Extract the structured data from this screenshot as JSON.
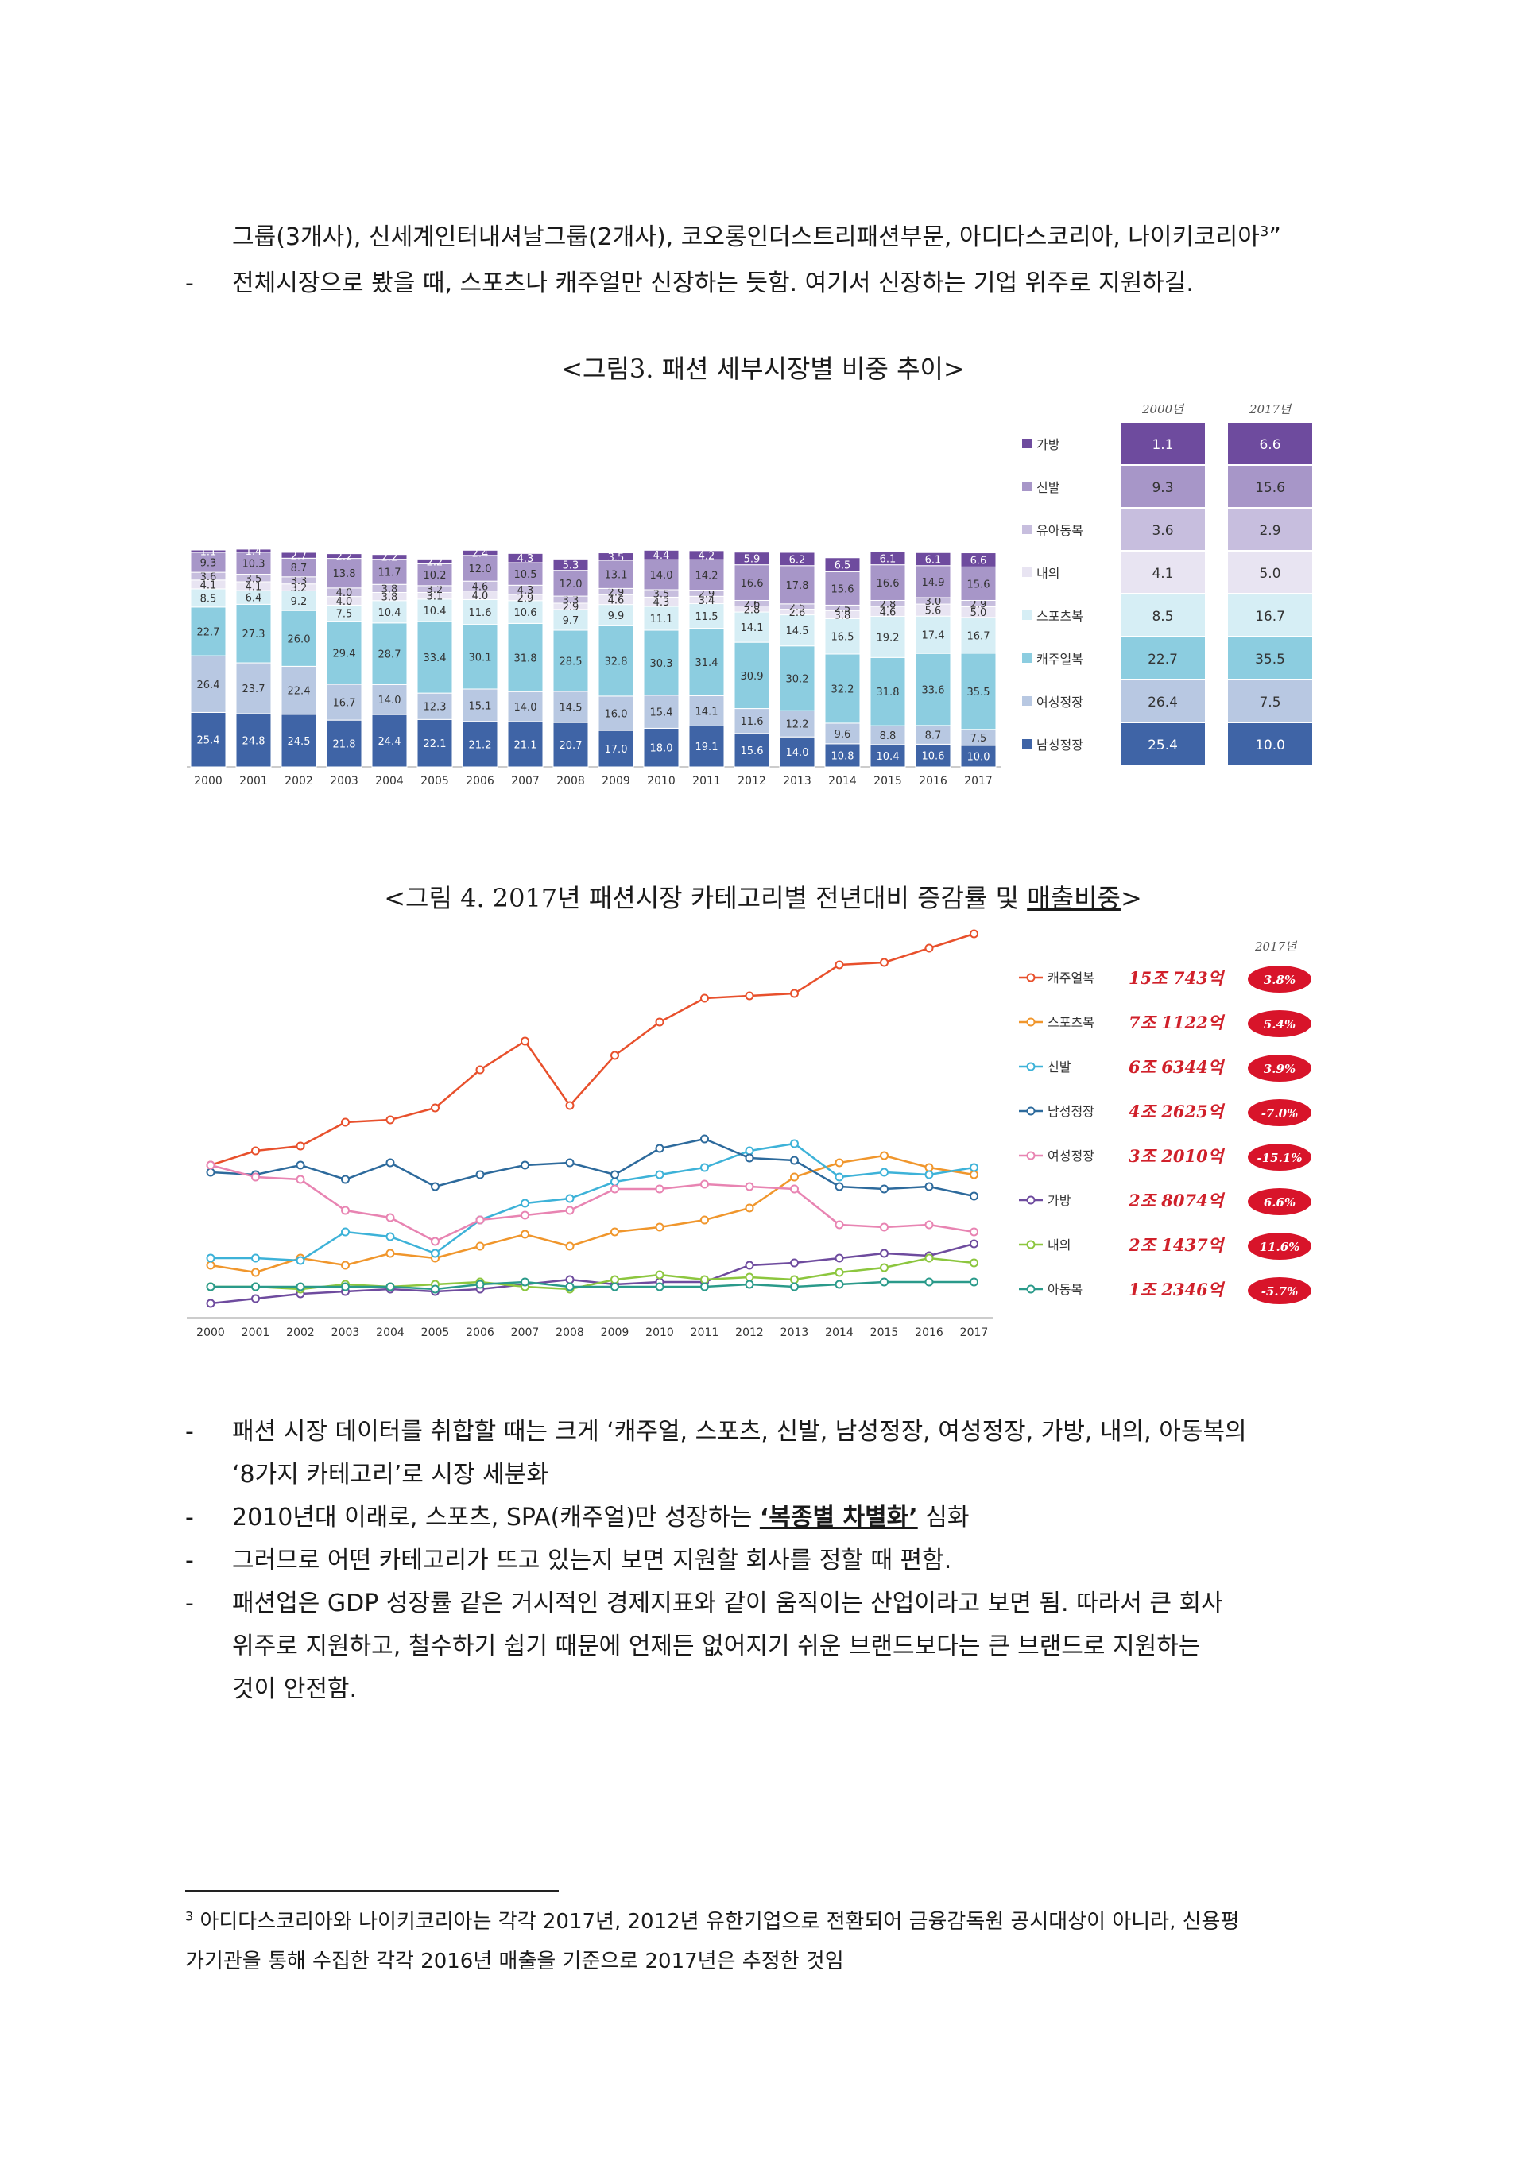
{
  "intro": {
    "line1_text": "그룹(3개사), 신세계인터내셔날그룹(2개사), 코오롱인더스트리패션부문, 아디다스코리아, 나이키코리아",
    "line1_sup": "3",
    "line1_end": "”",
    "bullet_text": "전체시장으로 봤을 때, 스포츠나 캐주얼만 신장하는 듯함. 여기서 신장하는 기업 위주로 지원하길."
  },
  "figure3": {
    "caption": "<그림3. 패션 세부시장별 비중 추이>",
    "table_col_2000": "2000년",
    "table_col_2017": "2017년"
  },
  "figure4": {
    "caption_pre": "<그림 4. 2017년 패션시장 카테고리별 전년대비 증감률 및 ",
    "caption_u": "매출비중",
    "caption_post": ">",
    "year_header": "2017년"
  },
  "bullets": [
    {
      "dash": "-",
      "line1": "패션 시장 데이터를 취합할 때는 크게 ‘캐주얼, 스포츠, 신발, 남성정장, 여성정장, 가방, 내의, 아동복의",
      "line2": "‘8가지 카테고리’로 시장 세분화"
    },
    {
      "dash": "-",
      "pre": "2010년대 이래로, 스포츠, SPA(캐주얼)만 성장하는 ",
      "bold": "‘복종별 차별화’",
      "post": " 심화"
    },
    {
      "dash": "-",
      "line1": "그러므로 어떤 카테고리가 뜨고 있는지 보면 지원할 회사를 정할 때 편함."
    },
    {
      "dash": "-",
      "line1": "패션업은 GDP 성장률 같은 거시적인 경제지표와 같이 움직이는 산업이라고 보면 됨. 따라서 큰 회사",
      "line2": "위주로 지원하고, 철수하기 쉽기 때문에 언제든 없어지기 쉬운 브랜드보다는 큰 브랜드로 지원하는",
      "line3": "것이 안전함."
    }
  ],
  "footnote": {
    "num": "3",
    "line1": "아디다스코리아와 나이키코리아는 각각 2017년, 2012년 유한기업으로 전환되어 금융감독원 공시대상이 아니라, 신용평",
    "line2": "가기관을 통해 수집한 각각 2016년 매출을 기준으로 2017년은 추정한 것임"
  },
  "chart_data": [
    {
      "type": "bar",
      "stacked": true,
      "title": "",
      "categories": [
        "2000",
        "2001",
        "2002",
        "2003",
        "2004",
        "2005",
        "2006",
        "2007",
        "2008",
        "2009",
        "2010",
        "2011",
        "2012",
        "2013",
        "2014",
        "2015",
        "2016",
        "2017"
      ],
      "series": [
        {
          "name": "남성정장",
          "color": "#3f64a6",
          "values": [
            25.4,
            24.8,
            24.5,
            21.8,
            24.4,
            22.1,
            21.2,
            21.1,
            20.7,
            17.0,
            18.0,
            19.1,
            15.6,
            14.0,
            10.8,
            10.4,
            10.6,
            10.0
          ]
        },
        {
          "name": "여성정장",
          "color": "#b8c8e2",
          "values": [
            26.4,
            23.7,
            22.4,
            16.7,
            14.0,
            12.3,
            15.1,
            14.0,
            14.5,
            16.0,
            15.4,
            14.1,
            11.6,
            12.2,
            9.6,
            8.8,
            8.7,
            7.5
          ]
        },
        {
          "name": "캐주얼복",
          "color": "#8ccde0",
          "values": [
            22.7,
            27.3,
            26.0,
            29.4,
            28.7,
            33.4,
            30.1,
            31.8,
            28.5,
            32.8,
            30.3,
            31.4,
            30.9,
            30.2,
            32.2,
            31.8,
            33.6,
            35.5
          ]
        },
        {
          "name": "스포츠복",
          "color": "#d6eef5",
          "values": [
            8.5,
            6.4,
            9.2,
            7.5,
            10.4,
            10.4,
            11.6,
            10.6,
            9.7,
            9.9,
            11.1,
            11.5,
            14.1,
            14.5,
            16.5,
            19.2,
            17.4,
            16.7
          ]
        },
        {
          "name": "내의",
          "color": "#e8e4f2",
          "values": [
            4.1,
            4.1,
            3.2,
            4.0,
            3.8,
            3.1,
            4.0,
            2.9,
            2.9,
            4.6,
            4.3,
            3.4,
            2.8,
            2.6,
            3.8,
            4.6,
            5.6,
            5.0
          ]
        },
        {
          "name": "유아동복",
          "color": "#c7bede",
          "values": [
            3.6,
            3.5,
            3.3,
            4.0,
            3.8,
            3.2,
            4.6,
            4.3,
            3.3,
            2.9,
            3.5,
            2.9,
            2.6,
            2.5,
            2.5,
            2.8,
            3.0,
            2.9
          ]
        },
        {
          "name": "신발",
          "color": "#a796c8",
          "values": [
            9.3,
            10.3,
            8.7,
            13.8,
            11.7,
            10.2,
            12.0,
            10.5,
            12.0,
            13.1,
            14.0,
            14.2,
            16.6,
            17.8,
            15.6,
            16.6,
            14.9,
            15.6
          ]
        },
        {
          "name": "가방",
          "color": "#6e4b9e",
          "values": [
            1.1,
            1.4,
            2.7,
            2.2,
            2.2,
            2.2,
            2.4,
            4.3,
            5.3,
            3.5,
            4.4,
            4.2,
            5.9,
            6.2,
            6.5,
            6.1,
            6.1,
            6.6
          ]
        }
      ],
      "summary_table": {
        "columns": [
          "2000년",
          "2017년"
        ],
        "rows": [
          {
            "name": "가방",
            "v2000": 1.1,
            "v2017": 6.6
          },
          {
            "name": "신발",
            "v2000": 9.3,
            "v2017": 15.6
          },
          {
            "name": "유아동복",
            "v2000": 3.6,
            "v2017": 2.9
          },
          {
            "name": "내의",
            "v2000": 4.1,
            "v2017": 5.0
          },
          {
            "name": "스포츠복",
            "v2000": 8.5,
            "v2017": 16.7
          },
          {
            "name": "캐주얼복",
            "v2000": 22.7,
            "v2017": 35.5
          },
          {
            "name": "여성정장",
            "v2000": 26.4,
            "v2017": 7.5
          },
          {
            "name": "남성정장",
            "v2000": 25.4,
            "v2017": 10.0
          }
        ]
      }
    },
    {
      "type": "line",
      "title": "",
      "x": [
        "2000",
        "2001",
        "2002",
        "2003",
        "2004",
        "2005",
        "2006",
        "2007",
        "2008",
        "2009",
        "2010",
        "2011",
        "2012",
        "2013",
        "2014",
        "2015",
        "2016",
        "2017"
      ],
      "ylim": [
        0,
        16
      ],
      "series": [
        {
          "name": "캐주얼복",
          "color": "#e8502c",
          "sales": "15조 743억",
          "change": "3.8%",
          "values": [
            5.9,
            6.5,
            6.7,
            7.7,
            7.8,
            8.3,
            9.9,
            11.1,
            8.4,
            10.5,
            11.9,
            12.9,
            13.0,
            13.1,
            14.3,
            14.4,
            15.0,
            15.6
          ]
        },
        {
          "name": "스포츠복",
          "color": "#f0962c",
          "sales": "7조 1122억",
          "change": "5.4%",
          "values": [
            1.7,
            1.4,
            2.0,
            1.7,
            2.2,
            2.0,
            2.5,
            3.0,
            2.5,
            3.1,
            3.3,
            3.6,
            4.1,
            5.4,
            6.0,
            6.3,
            5.8,
            5.5
          ]
        },
        {
          "name": "신발",
          "color": "#3db2d8",
          "values": [
            2.0,
            2.0,
            1.9,
            3.1,
            2.9,
            2.2,
            3.6,
            4.3,
            4.5,
            5.2,
            5.5,
            5.8,
            6.5,
            6.8,
            5.4,
            5.6,
            5.5,
            5.8
          ],
          "sales": "6조 6344억",
          "change": "3.9%"
        },
        {
          "name": "남성정장",
          "color": "#2d6a9c",
          "values": [
            5.6,
            5.5,
            5.9,
            5.3,
            6.0,
            5.0,
            5.5,
            5.9,
            6.0,
            5.5,
            6.6,
            7.0,
            6.2,
            6.1,
            5.0,
            4.9,
            5.0,
            4.6
          ],
          "sales": "4조 2625억",
          "change": "-7.0%"
        },
        {
          "name": "여성정장",
          "color": "#e884b2",
          "values": [
            5.9,
            5.4,
            5.3,
            4.0,
            3.7,
            2.7,
            3.6,
            3.8,
            4.0,
            4.9,
            4.9,
            5.1,
            5.0,
            4.9,
            3.4,
            3.3,
            3.4,
            3.1
          ],
          "sales": "3조 2010억",
          "change": "-15.1%"
        },
        {
          "name": "가방",
          "color": "#6e4b9e",
          "values": [
            0.1,
            0.3,
            0.5,
            0.6,
            0.7,
            0.6,
            0.7,
            0.9,
            1.1,
            0.9,
            1.0,
            1.0,
            1.7,
            1.8,
            2.0,
            2.2,
            2.1,
            2.6
          ],
          "sales": "2조 8074억",
          "change": "6.6%"
        },
        {
          "name": "내의",
          "color": "#8cc63e",
          "values": [
            0.8,
            0.8,
            0.7,
            0.9,
            0.8,
            0.9,
            1.0,
            0.8,
            0.7,
            1.1,
            1.3,
            1.1,
            1.2,
            1.1,
            1.4,
            1.6,
            2.0,
            1.8
          ],
          "sales": "2조 1437억",
          "change": "11.6%"
        },
        {
          "name": "아동복",
          "color": "#2a9a8a",
          "values": [
            0.8,
            0.8,
            0.8,
            0.8,
            0.8,
            0.7,
            0.9,
            1.0,
            0.8,
            0.8,
            0.8,
            0.8,
            0.9,
            0.8,
            0.9,
            1.0,
            1.0,
            1.0
          ],
          "sales": "1조 2346억",
          "change": "-5.7%"
        }
      ]
    }
  ]
}
